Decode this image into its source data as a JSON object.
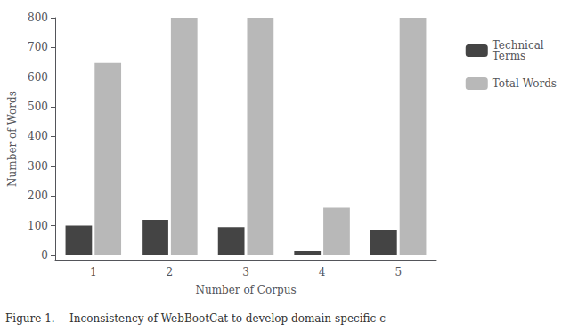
{
  "chart_data": {
    "type": "bar",
    "categories": [
      "1",
      "2",
      "3",
      "4",
      "5"
    ],
    "series": [
      {
        "name": "Technical\nTerms",
        "color": "#444444",
        "values": [
          100,
          120,
          95,
          15,
          85
        ]
      },
      {
        "name": "Total Words",
        "color": "#b8b8b8",
        "values": [
          648,
          800,
          800,
          160,
          800
        ]
      }
    ],
    "xlabel": "Number of Corpus",
    "ylabel": "Number of Words",
    "ylim": [
      -15,
      800
    ],
    "yticks": [
      0,
      100,
      200,
      300,
      400,
      500,
      600,
      700,
      800
    ],
    "grid": false,
    "legend": "right",
    "annotations": [
      "Figure 1.",
      "Inconsistency of WebBootCat to develop domain-specific c"
    ]
  }
}
